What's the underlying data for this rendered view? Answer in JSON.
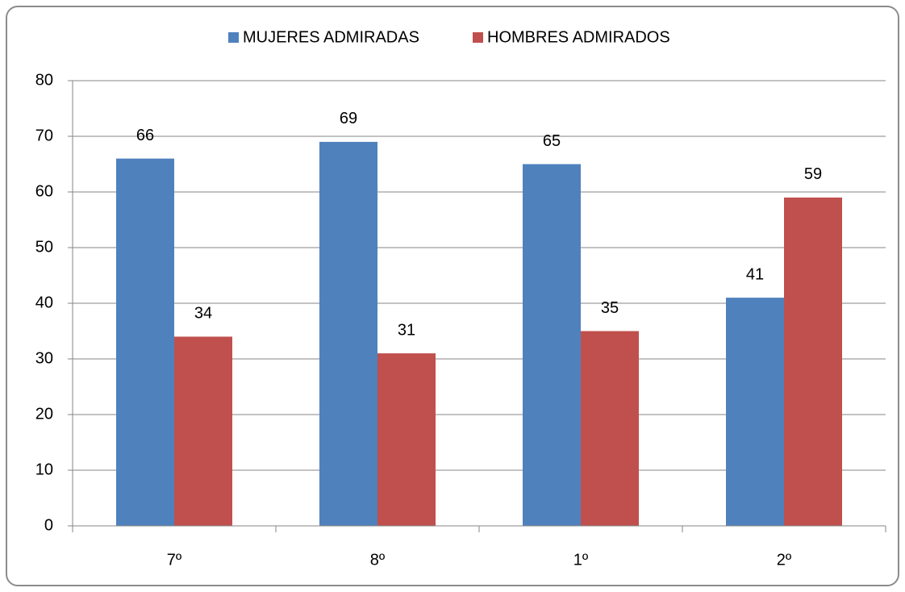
{
  "chart_data": {
    "type": "bar",
    "categories": [
      "7º",
      "8º",
      "1º",
      "2º"
    ],
    "series": [
      {
        "name": "MUJERES ADMIRADAS",
        "color": "#4f81bd",
        "values": [
          66,
          69,
          65,
          41
        ]
      },
      {
        "name": "HOMBRES ADMIRADOS",
        "color": "#c0504d",
        "values": [
          34,
          31,
          35,
          59
        ]
      }
    ],
    "ylim": [
      0,
      80
    ],
    "yticks": [
      0,
      10,
      20,
      30,
      40,
      50,
      60,
      70,
      80
    ],
    "grid": true,
    "legend": "top"
  }
}
